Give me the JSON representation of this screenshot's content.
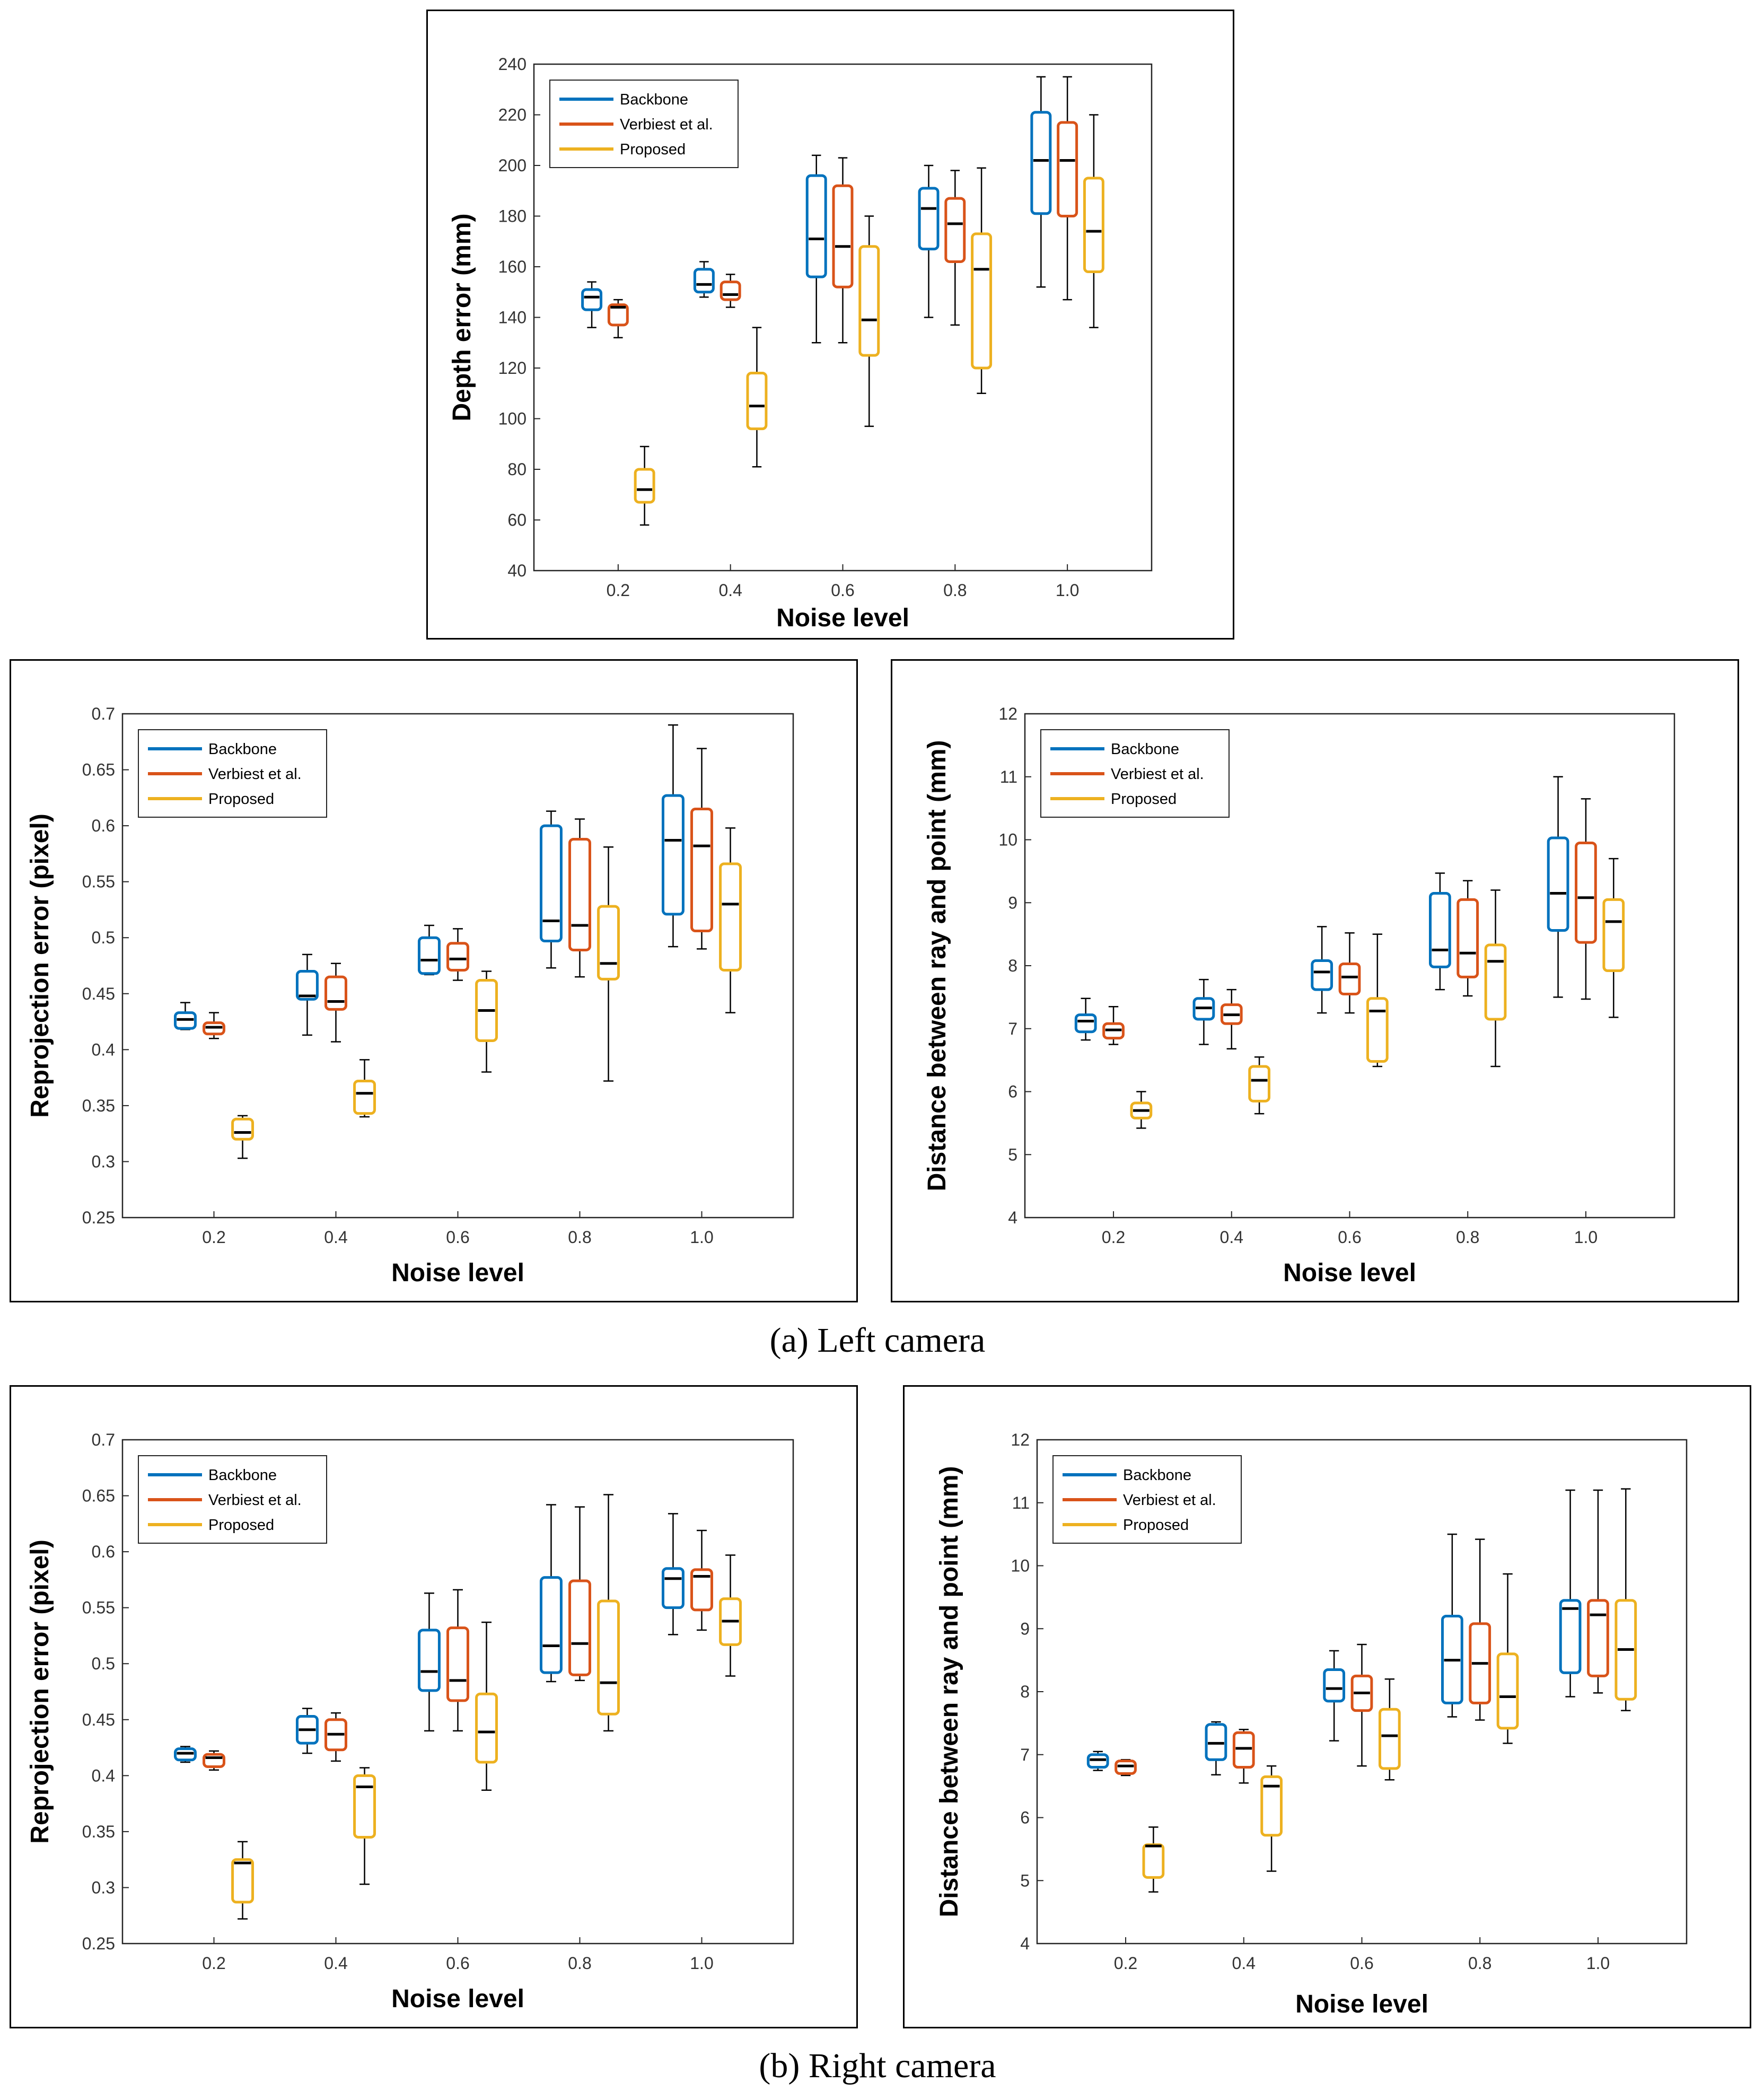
{
  "captions": {
    "left_camera": "(a) Left camera",
    "right_camera": "(b) Right camera"
  },
  "colors": {
    "backbone": "#0072BD",
    "verbiest": "#D95319",
    "proposed": "#EDB120",
    "median": "#000000",
    "whisker": "#000000"
  },
  "chart_data": [
    {
      "id": "left-depth",
      "type": "box",
      "xlabel": "Noise level",
      "ylabel": "Depth error (mm)",
      "categories": [
        "0.2",
        "0.4",
        "0.6",
        "0.8",
        "1.0"
      ],
      "ylim": [
        40,
        240
      ],
      "yticks": [
        "40",
        "60",
        "80",
        "100",
        "120",
        "140",
        "160",
        "180",
        "200",
        "220",
        "240"
      ],
      "legend": [
        "Backbone",
        "Verbiest et al.",
        "Proposed"
      ],
      "series": [
        {
          "name": "Backbone",
          "color": "#0072BD",
          "boxes": [
            [
              136,
              143,
              148,
              151,
              154
            ],
            [
              148,
              150,
              153,
              159,
              162
            ],
            [
              130,
              156,
              171,
              196,
              204
            ],
            [
              140,
              167,
              183,
              191,
              200
            ],
            [
              152,
              181,
              202,
              221,
              235
            ]
          ]
        },
        {
          "name": "Verbiest et al.",
          "color": "#D95319",
          "boxes": [
            [
              132,
              137,
              144,
              145,
              147
            ],
            [
              144,
              147,
              149,
              154,
              157
            ],
            [
              130,
              152,
              168,
              192,
              203
            ],
            [
              137,
              162,
              177,
              187,
              198
            ],
            [
              147,
              180,
              202,
              217,
              235
            ]
          ]
        },
        {
          "name": "Proposed",
          "color": "#EDB120",
          "boxes": [
            [
              58,
              67,
              72,
              80,
              89
            ],
            [
              81,
              96,
              105,
              118,
              136
            ],
            [
              97,
              125,
              139,
              168,
              180
            ],
            [
              110,
              120,
              159,
              173,
              199
            ],
            [
              136,
              158,
              174,
              195,
              220
            ]
          ]
        }
      ]
    },
    {
      "id": "left-reprojection",
      "type": "box",
      "xlabel": "Noise level",
      "ylabel": "Reprojection error (pixel)",
      "categories": [
        "0.2",
        "0.4",
        "0.6",
        "0.8",
        "1.0"
      ],
      "ylim": [
        0.25,
        0.7
      ],
      "yticks": [
        "0.25",
        "0.3",
        "0.35",
        "0.4",
        "0.45",
        "0.5",
        "0.55",
        "0.6",
        "0.65",
        "0.7"
      ],
      "legend": [
        "Backbone",
        "Verbiest et al.",
        "Proposed"
      ],
      "series": [
        {
          "name": "Backbone",
          "color": "#0072BD",
          "boxes": [
            [
              0.418,
              0.419,
              0.427,
              0.433,
              0.442
            ],
            [
              0.413,
              0.445,
              0.448,
              0.47,
              0.485
            ],
            [
              0.467,
              0.468,
              0.48,
              0.5,
              0.511
            ],
            [
              0.473,
              0.497,
              0.515,
              0.6,
              0.613
            ],
            [
              0.492,
              0.521,
              0.587,
              0.627,
              0.69
            ]
          ]
        },
        {
          "name": "Verbiest et al.",
          "color": "#D95319",
          "boxes": [
            [
              0.41,
              0.414,
              0.42,
              0.424,
              0.433
            ],
            [
              0.407,
              0.436,
              0.443,
              0.465,
              0.477
            ],
            [
              0.462,
              0.471,
              0.481,
              0.495,
              0.508
            ],
            [
              0.465,
              0.489,
              0.511,
              0.588,
              0.606
            ],
            [
              0.49,
              0.506,
              0.582,
              0.615,
              0.669
            ]
          ]
        },
        {
          "name": "Proposed",
          "color": "#EDB120",
          "boxes": [
            [
              0.303,
              0.32,
              0.326,
              0.338,
              0.341
            ],
            [
              0.34,
              0.343,
              0.361,
              0.372,
              0.391
            ],
            [
              0.38,
              0.408,
              0.435,
              0.462,
              0.47
            ],
            [
              0.372,
              0.463,
              0.477,
              0.528,
              0.581
            ],
            [
              0.433,
              0.471,
              0.53,
              0.566,
              0.598
            ]
          ]
        }
      ]
    },
    {
      "id": "left-distance",
      "type": "box",
      "xlabel": "Noise level",
      "ylabel": "Distance between ray and point (mm)",
      "categories": [
        "0.2",
        "0.4",
        "0.6",
        "0.8",
        "1.0"
      ],
      "ylim": [
        4,
        12
      ],
      "yticks": [
        "4",
        "5",
        "6",
        "7",
        "8",
        "9",
        "10",
        "11",
        "12"
      ],
      "legend": [
        "Backbone",
        "Verbiest et al.",
        "Proposed"
      ],
      "series": [
        {
          "name": "Backbone",
          "color": "#0072BD",
          "boxes": [
            [
              6.82,
              6.95,
              7.12,
              7.22,
              7.48
            ],
            [
              6.75,
              7.15,
              7.33,
              7.48,
              7.78
            ],
            [
              7.25,
              7.62,
              7.9,
              8.08,
              8.62
            ],
            [
              7.62,
              7.98,
              8.25,
              9.15,
              9.47
            ],
            [
              7.5,
              8.56,
              9.15,
              10.03,
              11.0
            ]
          ]
        },
        {
          "name": "Verbiest et al.",
          "color": "#D95319",
          "boxes": [
            [
              6.75,
              6.85,
              6.98,
              7.08,
              7.35
            ],
            [
              6.68,
              7.08,
              7.22,
              7.38,
              7.62
            ],
            [
              7.25,
              7.55,
              7.82,
              8.03,
              8.52
            ],
            [
              7.52,
              7.82,
              8.2,
              9.05,
              9.35
            ],
            [
              7.47,
              8.37,
              9.08,
              9.95,
              10.65
            ]
          ]
        },
        {
          "name": "Proposed",
          "color": "#EDB120",
          "boxes": [
            [
              5.42,
              5.58,
              5.7,
              5.82,
              6.0
            ],
            [
              5.65,
              5.85,
              6.18,
              6.4,
              6.55
            ],
            [
              6.4,
              6.48,
              7.28,
              7.48,
              8.5
            ],
            [
              6.4,
              7.15,
              8.07,
              8.33,
              9.2
            ],
            [
              7.18,
              7.92,
              8.7,
              9.05,
              9.7
            ]
          ]
        }
      ]
    },
    {
      "id": "right-reprojection",
      "type": "box",
      "xlabel": "Noise level",
      "ylabel": "Reprojection error (pixel)",
      "categories": [
        "0.2",
        "0.4",
        "0.6",
        "0.8",
        "1.0"
      ],
      "ylim": [
        0.25,
        0.7
      ],
      "yticks": [
        "0.25",
        "0.3",
        "0.35",
        "0.4",
        "0.45",
        "0.5",
        "0.55",
        "0.6",
        "0.65",
        "0.7"
      ],
      "legend": [
        "Backbone",
        "Verbiest et al.",
        "Proposed"
      ],
      "series": [
        {
          "name": "Backbone",
          "color": "#0072BD",
          "boxes": [
            [
              0.412,
              0.414,
              0.42,
              0.424,
              0.426
            ],
            [
              0.42,
              0.429,
              0.441,
              0.453,
              0.46
            ],
            [
              0.44,
              0.476,
              0.493,
              0.53,
              0.563
            ],
            [
              0.484,
              0.492,
              0.516,
              0.577,
              0.642
            ],
            [
              0.526,
              0.55,
              0.576,
              0.585,
              0.634
            ]
          ]
        },
        {
          "name": "Verbiest et al.",
          "color": "#D95319",
          "boxes": [
            [
              0.405,
              0.408,
              0.416,
              0.419,
              0.422
            ],
            [
              0.413,
              0.423,
              0.437,
              0.45,
              0.456
            ],
            [
              0.44,
              0.467,
              0.485,
              0.532,
              0.566
            ],
            [
              0.485,
              0.49,
              0.518,
              0.574,
              0.64
            ],
            [
              0.53,
              0.548,
              0.578,
              0.584,
              0.619
            ]
          ]
        },
        {
          "name": "Proposed",
          "color": "#EDB120",
          "boxes": [
            [
              0.272,
              0.287,
              0.322,
              0.325,
              0.341
            ],
            [
              0.303,
              0.345,
              0.39,
              0.4,
              0.407
            ],
            [
              0.387,
              0.412,
              0.439,
              0.473,
              0.537
            ],
            [
              0.44,
              0.455,
              0.483,
              0.556,
              0.651
            ],
            [
              0.489,
              0.517,
              0.538,
              0.558,
              0.597
            ]
          ]
        }
      ]
    },
    {
      "id": "right-distance",
      "type": "box",
      "xlabel": "Noise level",
      "ylabel": "Distance between ray and point (mm)",
      "categories": [
        "0.2",
        "0.4",
        "0.6",
        "0.8",
        "1.0"
      ],
      "ylim": [
        4,
        12
      ],
      "yticks": [
        "4",
        "5",
        "6",
        "7",
        "8",
        "9",
        "10",
        "11",
        "12"
      ],
      "legend": [
        "Backbone",
        "Verbiest et al.",
        "Proposed"
      ],
      "series": [
        {
          "name": "Backbone",
          "color": "#0072BD",
          "boxes": [
            [
              6.75,
              6.8,
              6.92,
              7.0,
              7.05
            ],
            [
              6.68,
              6.92,
              7.18,
              7.48,
              7.52
            ],
            [
              7.22,
              7.85,
              8.05,
              8.35,
              8.65
            ],
            [
              7.6,
              7.82,
              8.5,
              9.2,
              10.5
            ],
            [
              7.92,
              8.3,
              9.32,
              9.45,
              11.2
            ]
          ]
        },
        {
          "name": "Verbiest et al.",
          "color": "#D95319",
          "boxes": [
            [
              6.67,
              6.7,
              6.82,
              6.9,
              6.92
            ],
            [
              6.55,
              6.8,
              7.1,
              7.35,
              7.4
            ],
            [
              6.82,
              7.7,
              7.98,
              8.25,
              8.75
            ],
            [
              7.55,
              7.82,
              8.45,
              9.08,
              10.42
            ],
            [
              7.98,
              8.25,
              9.22,
              9.45,
              11.2
            ]
          ]
        },
        {
          "name": "Proposed",
          "color": "#EDB120",
          "boxes": [
            [
              4.82,
              5.05,
              5.55,
              5.57,
              5.85
            ],
            [
              5.15,
              5.72,
              6.5,
              6.65,
              6.82
            ],
            [
              6.6,
              6.78,
              7.3,
              7.72,
              8.2
            ],
            [
              7.18,
              7.42,
              7.92,
              8.6,
              9.87
            ],
            [
              7.7,
              7.88,
              8.67,
              9.45,
              11.22
            ]
          ]
        }
      ]
    }
  ]
}
